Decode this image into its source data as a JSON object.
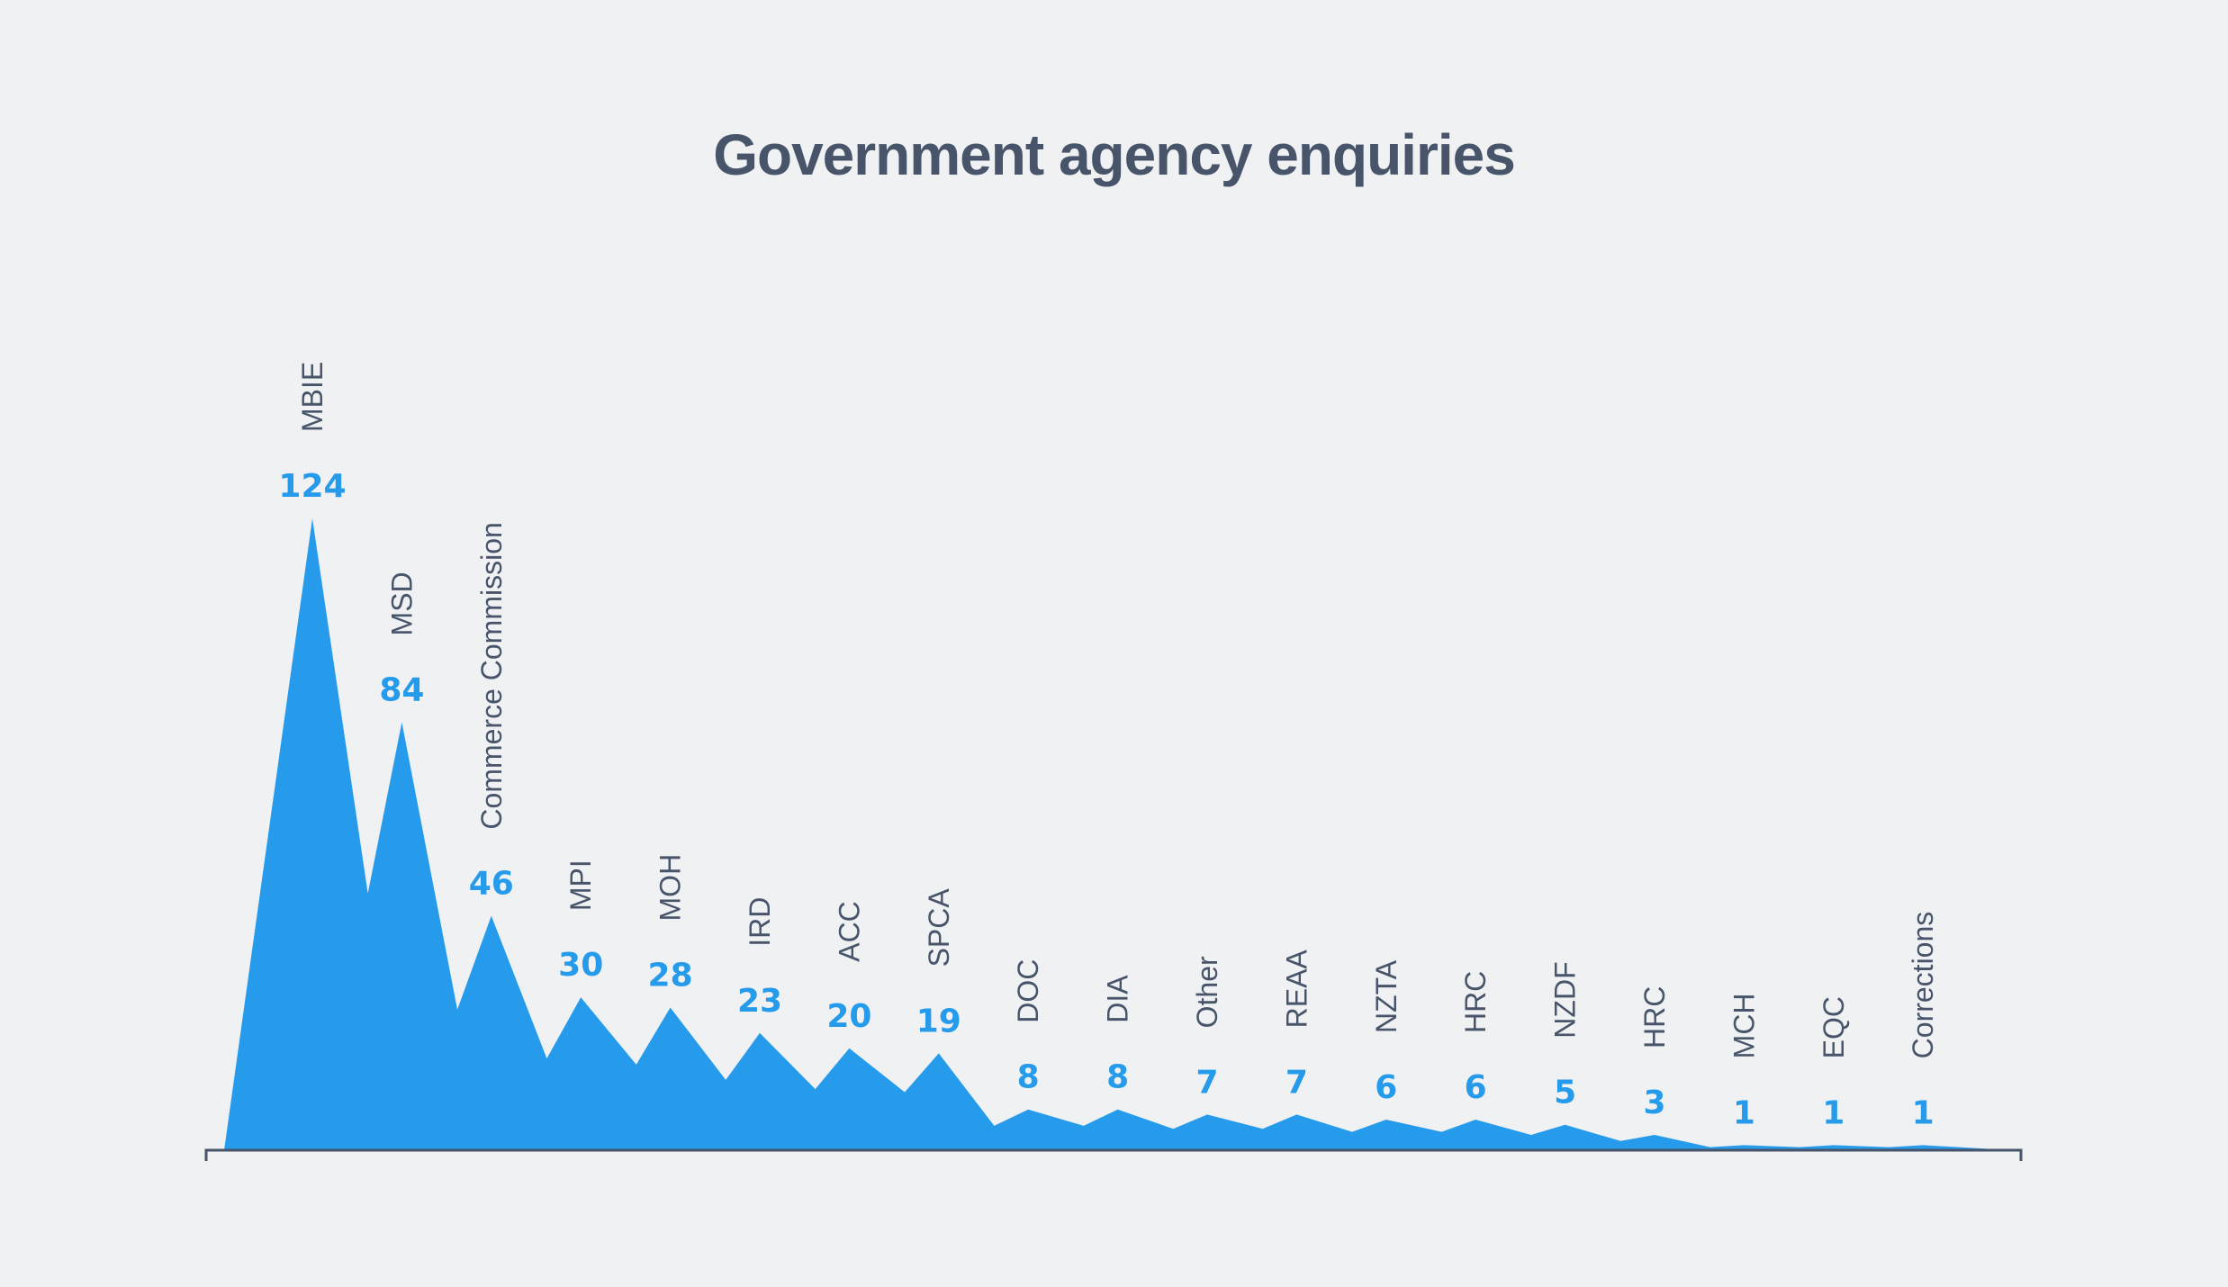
{
  "chart_data": {
    "type": "area",
    "title": "Government agency enquiries",
    "xlabel": "",
    "ylabel": "",
    "categories": [
      "MBIE",
      "MSD",
      "Commerce Commission",
      "MPI",
      "MOH",
      "IRD",
      "ACC",
      "SPCA",
      "DOC",
      "DIA",
      "Other",
      "REAA",
      "NZTA",
      "HRC",
      "NZDF",
      "HRC",
      "MCH",
      "EQC",
      "Corrections"
    ],
    "values": [
      124,
      84,
      46,
      30,
      28,
      23,
      20,
      19,
      8,
      8,
      7,
      7,
      6,
      6,
      5,
      3,
      1,
      1,
      1
    ],
    "data_labels": true,
    "ylim": [
      0,
      124
    ],
    "grid": false,
    "legend": "none",
    "colors": {
      "area": "#279beb",
      "value_label": "#279beb",
      "category_label": "#475469",
      "axis": "#475469",
      "title": "#475469",
      "background": "#eff1f3"
    }
  }
}
